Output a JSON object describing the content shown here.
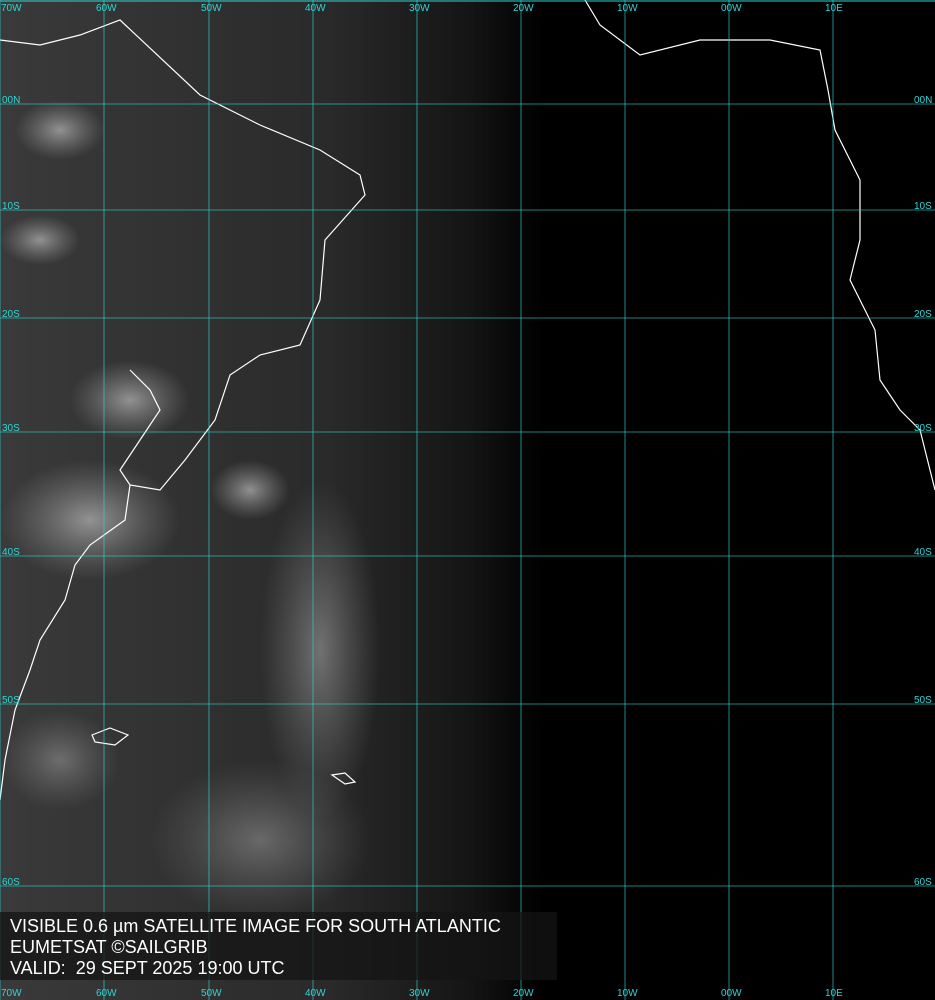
{
  "caption": {
    "line1": "VISIBLE 0.6 µm SATELLITE IMAGE FOR SOUTH ATLANTIC",
    "line2": "EUMETSAT ©SAILGRIB",
    "line3": "VALID:  29 SEPT 2025 19:00 UTC"
  },
  "grid": {
    "longitudes": [
      "70W",
      "60W",
      "50W",
      "40W",
      "30W",
      "20W",
      "10W",
      "00W",
      "10E"
    ],
    "latitudes": [
      "00N",
      "10S",
      "20S",
      "30S",
      "40S",
      "50S",
      "60S"
    ],
    "line_color": "#2fd6d6"
  },
  "colors": {
    "coastline": "#ffffff",
    "night": "#000000"
  }
}
